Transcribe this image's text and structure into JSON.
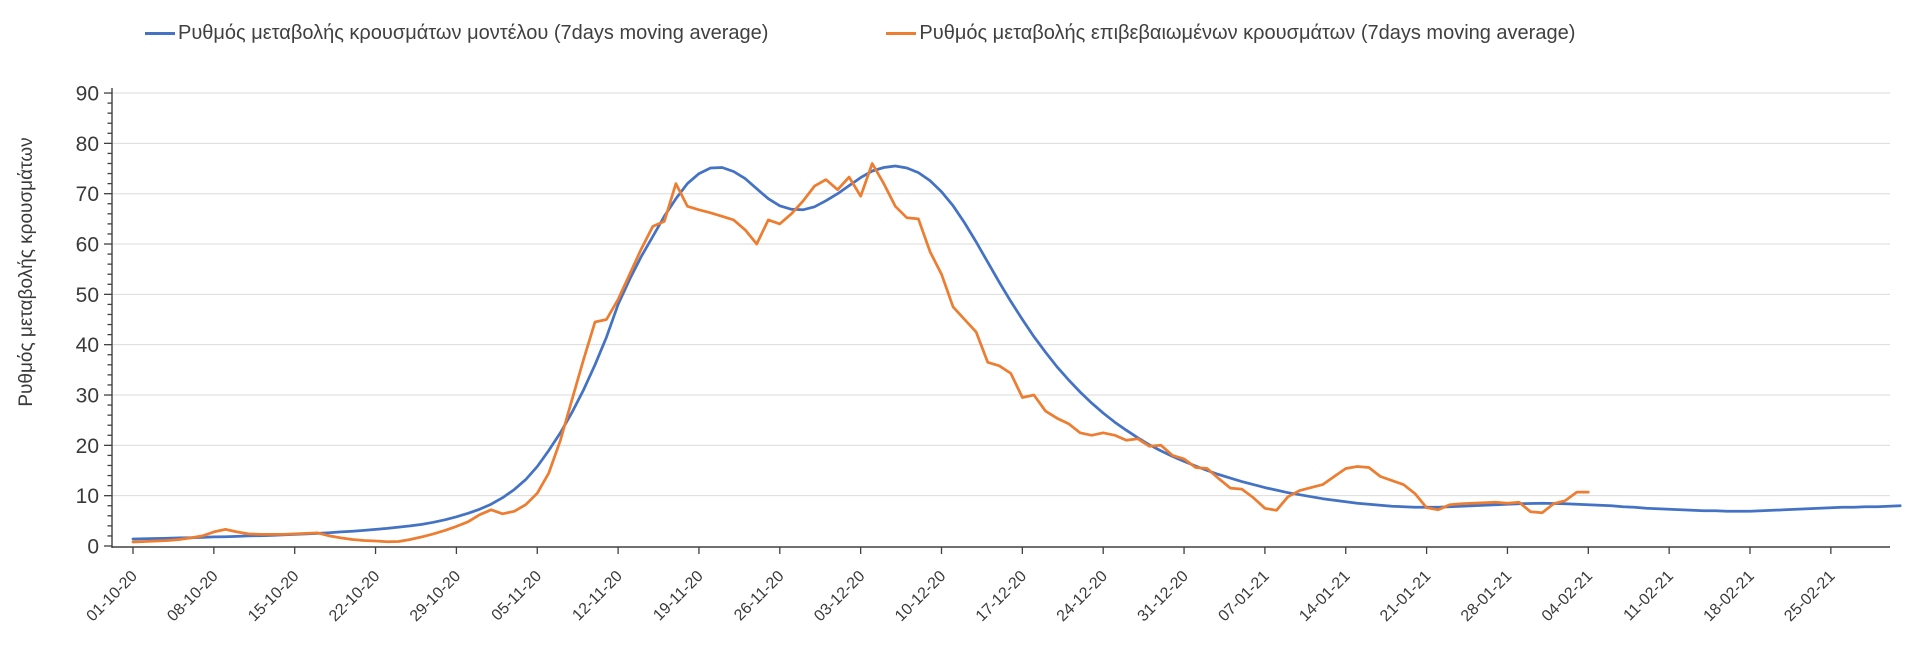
{
  "page": {
    "background": "#ffffff"
  },
  "legend": {
    "items": [
      {
        "label": "Ρυθμός μεταβολής κρουσμάτων μοντέλου (7days moving average)",
        "color": "#4472C4",
        "series_key": "model"
      },
      {
        "label": "Ρυθμός μεταβολής επιβεβαιωμένων κρουσμάτων (7days moving average)",
        "color": "#ED7D31",
        "series_key": "confirmed"
      }
    ]
  },
  "y_axis": {
    "title": "Ρυθμός μεταβολής κρουσμάτων"
  },
  "chart_data": {
    "type": "line",
    "title": "",
    "xlabel": "",
    "ylabel": "Ρυθμός μεταβολής κρουσμάτων",
    "ylim": [
      0,
      90
    ],
    "y_tick_step": 10,
    "y_minor_tick_step": 2,
    "grid": "horizontal-major",
    "legend_position": "top",
    "x_unit": "days since 01-10-20, ticks weekly",
    "x_tick_every_days": 7,
    "x_tick_labels": [
      "01-10-20",
      "08-10-20",
      "15-10-20",
      "22-10-20",
      "29-10-20",
      "05-11-20",
      "12-11-20",
      "19-11-20",
      "26-11-20",
      "03-12-20",
      "10-12-20",
      "17-12-20",
      "24-12-20",
      "31-12-20",
      "07-01-21",
      "14-01-21",
      "21-01-21",
      "28-01-21",
      "04-02-21",
      "11-02-21",
      "18-02-21",
      "25-02-21"
    ],
    "series": [
      {
        "name": "Ρυθμός μεταβολής κρουσμάτων μοντέλου (7days moving average)",
        "color": "#4472C4",
        "start_day": 0,
        "values_daily": [
          1.4,
          1.45,
          1.5,
          1.55,
          1.6,
          1.65,
          1.7,
          1.8,
          1.85,
          1.9,
          2.0,
          2.05,
          2.1,
          2.2,
          2.3,
          2.4,
          2.5,
          2.65,
          2.8,
          2.95,
          3.1,
          3.3,
          3.5,
          3.75,
          4.0,
          4.3,
          4.7,
          5.2,
          5.8,
          6.5,
          7.3,
          8.3,
          9.6,
          11.2,
          13.2,
          15.8,
          19.0,
          22.5,
          26.5,
          31.0,
          36.0,
          41.5,
          48.0,
          53.0,
          57.5,
          61.5,
          65.5,
          69.0,
          72.0,
          74.0,
          75.1,
          75.2,
          74.4,
          73.0,
          71.0,
          69.0,
          67.6,
          66.9,
          66.8,
          67.4,
          68.6,
          70.0,
          71.6,
          73.2,
          74.5,
          75.2,
          75.5,
          75.1,
          74.2,
          72.6,
          70.4,
          67.6,
          64.2,
          60.4,
          56.4,
          52.4,
          48.6,
          45.0,
          41.6,
          38.5,
          35.6,
          33.0,
          30.6,
          28.4,
          26.4,
          24.6,
          23.0,
          21.5,
          20.1,
          18.9,
          17.8,
          16.8,
          15.9,
          15.0,
          14.2,
          13.5,
          12.8,
          12.2,
          11.6,
          11.1,
          10.6,
          10.2,
          9.8,
          9.4,
          9.1,
          8.8,
          8.5,
          8.3,
          8.1,
          7.9,
          7.8,
          7.7,
          7.7,
          7.7,
          7.8,
          7.9,
          8.0,
          8.1,
          8.2,
          8.3,
          8.4,
          8.45,
          8.5,
          8.45,
          8.4,
          8.3,
          8.2,
          8.1,
          8.0,
          7.8,
          7.7,
          7.5,
          7.4,
          7.3,
          7.2,
          7.1,
          7.0,
          7.0,
          6.9,
          6.9,
          6.9,
          7.0,
          7.1,
          7.2,
          7.3,
          7.4,
          7.5,
          7.6,
          7.7,
          7.7,
          7.8,
          7.8,
          7.9,
          8.0
        ]
      },
      {
        "name": "Ρυθμός μεταβολής επιβεβαιωμένων κρουσμάτων (7days moving average)",
        "color": "#ED7D31",
        "start_day": 0,
        "values_daily": [
          0.8,
          0.9,
          1.0,
          1.1,
          1.3,
          1.6,
          2.0,
          2.8,
          3.3,
          2.8,
          2.4,
          2.3,
          2.3,
          2.3,
          2.4,
          2.5,
          2.6,
          2.0,
          1.6,
          1.3,
          1.1,
          1.0,
          0.85,
          0.9,
          1.3,
          1.8,
          2.4,
          3.1,
          3.9,
          4.8,
          6.2,
          7.2,
          6.4,
          6.9,
          8.2,
          10.5,
          14.5,
          21.0,
          29.0,
          37.0,
          44.5,
          45.0,
          49.0,
          54.0,
          59.0,
          63.5,
          64.5,
          72.0,
          67.5,
          66.8,
          66.2,
          65.5,
          64.8,
          62.8,
          60.0,
          64.8,
          64.0,
          66.0,
          68.5,
          71.5,
          72.8,
          70.8,
          73.3,
          69.5,
          76.0,
          72.0,
          67.5,
          65.2,
          65.0,
          58.5,
          54.0,
          47.5,
          45.0,
          42.5,
          36.5,
          35.8,
          34.3,
          29.5,
          30.0,
          26.8,
          25.4,
          24.3,
          22.5,
          22.0,
          22.5,
          22.0,
          21.0,
          21.3,
          19.8,
          20.0,
          18.0,
          17.3,
          15.6,
          15.4,
          13.4,
          11.5,
          11.3,
          9.6,
          7.5,
          7.1,
          9.8,
          11.0,
          11.6,
          12.2,
          13.8,
          15.4,
          15.8,
          15.6,
          13.8,
          13.0,
          12.2,
          10.4,
          7.6,
          7.2,
          8.2,
          8.4,
          8.5,
          8.6,
          8.7,
          8.5,
          8.7,
          6.8,
          6.6,
          8.4,
          9.0,
          10.7,
          10.7
        ]
      }
    ]
  },
  "colors": {
    "series_model": "#4472C4",
    "series_confirmed": "#ED7D31",
    "gridline": "#DBDBDB",
    "axis": "#404040",
    "text": "#3A3A3A"
  }
}
